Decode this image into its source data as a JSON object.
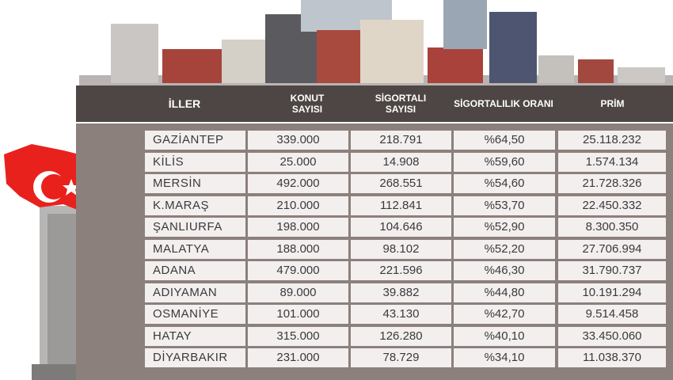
{
  "table": {
    "header": [
      "İLLER",
      "KONUT SAYISI",
      "SİGORTALI SAYISI",
      "SİGORTALILIK ORANI",
      "PRİM"
    ],
    "rows": [
      [
        "GAZİANTEP",
        "339.000",
        "218.791",
        "%64,50",
        "25.118.232"
      ],
      [
        "KİLİS",
        "25.000",
        "14.908",
        "%59,60",
        "1.574.134"
      ],
      [
        "MERSİN",
        "492.000",
        "268.551",
        "%54,60",
        "21.728.326"
      ],
      [
        "K.MARAŞ",
        "210.000",
        "112.841",
        "%53,70",
        "22.450.332"
      ],
      [
        "ŞANLIURFA",
        "198.000",
        "104.646",
        "%52,90",
        "8.300.350"
      ],
      [
        "MALATYA",
        "188.000",
        "98.102",
        "%52,20",
        "27.706.994"
      ],
      [
        "ADANA",
        "479.000",
        "221.596",
        "%46,30",
        "31.790.737"
      ],
      [
        "ADIYAMAN",
        "89.000",
        "39.882",
        "%44,80",
        "10.191.294"
      ],
      [
        "OSMANİYE",
        "101.000",
        "43.130",
        "%42,70",
        "9.514.458"
      ],
      [
        "HATAY",
        "315.000",
        "126.280",
        "%40,10",
        "33.450.060"
      ],
      [
        "DİYARBAKIR",
        "231.000",
        "78.729",
        "%34,10",
        "11.038.370"
      ]
    ]
  }
}
